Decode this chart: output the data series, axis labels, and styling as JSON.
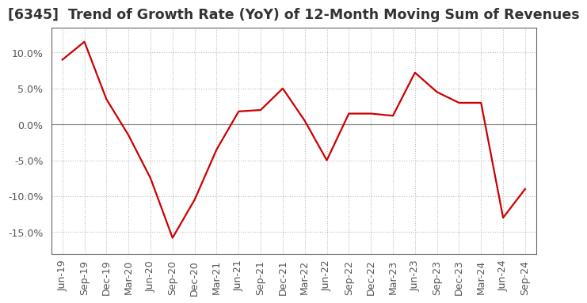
{
  "title": "[6345]  Trend of Growth Rate (YoY) of 12-Month Moving Sum of Revenues",
  "x_labels": [
    "Jun-19",
    "Sep-19",
    "Dec-19",
    "Mar-20",
    "Jun-20",
    "Sep-20",
    "Dec-20",
    "Mar-21",
    "Jun-21",
    "Sep-21",
    "Dec-21",
    "Mar-22",
    "Jun-22",
    "Sep-22",
    "Dec-22",
    "Mar-23",
    "Jun-23",
    "Sep-23",
    "Dec-23",
    "Mar-24",
    "Jun-24",
    "Sep-24"
  ],
  "y_values": [
    9.0,
    11.5,
    3.5,
    -1.5,
    -7.5,
    -15.8,
    -10.5,
    -3.5,
    1.8,
    2.0,
    5.0,
    0.5,
    -5.0,
    1.5,
    1.5,
    1.2,
    7.2,
    4.5,
    3.0,
    3.0,
    -13.0,
    -9.0
  ],
  "ylim": [
    -18.0,
    13.5
  ],
  "yticks": [
    -15.0,
    -10.0,
    -5.0,
    0.0,
    5.0,
    10.0
  ],
  "line_color": "#cc0000",
  "line_width": 1.6,
  "background_color": "#ffffff",
  "plot_bg_color": "#ffffff",
  "grid_color": "#bbbbbb",
  "title_fontsize": 12.5,
  "tick_fontsize": 9,
  "label_color": "#555555"
}
